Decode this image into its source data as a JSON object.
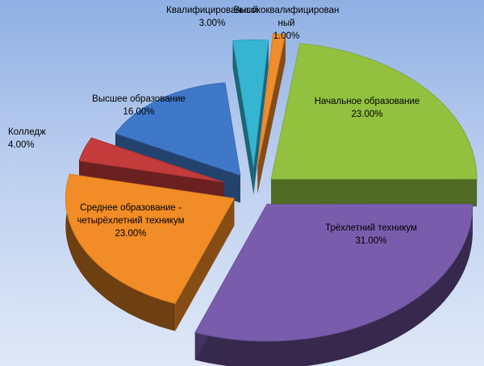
{
  "chart_data": {
    "type": "pie",
    "title": "",
    "slices": [
      {
        "label_lines": [
          "Начальное образование"
        ],
        "value_label": "23.00%",
        "value": 23,
        "color": "#92c13f"
      },
      {
        "label_lines": [
          "Трёхлетний техникум"
        ],
        "value_label": "31.00%",
        "value": 31,
        "color": "#7a5cad"
      },
      {
        "label_lines": [
          "Среднее образование -",
          "четырёхлетний техникум"
        ],
        "value_label": "23.00%",
        "value": 23,
        "color": "#f28c26"
      },
      {
        "label_lines": [
          "Колледж"
        ],
        "value_label": "4.00%",
        "value": 4,
        "color": "#c33b3b"
      },
      {
        "label_lines": [
          "Высшее образование"
        ],
        "value_label": "16.00%",
        "value": 16,
        "color": "#3f78c8"
      },
      {
        "label_lines": [
          "Квалифицированный"
        ],
        "value_label": "3.00%",
        "value": 3,
        "color": "#35b5d2"
      },
      {
        "label_lines": [
          "Высококвалифицирован",
          "ный"
        ],
        "value_label": "1.00%",
        "value": 1,
        "color": "#f08c2a"
      }
    ]
  }
}
